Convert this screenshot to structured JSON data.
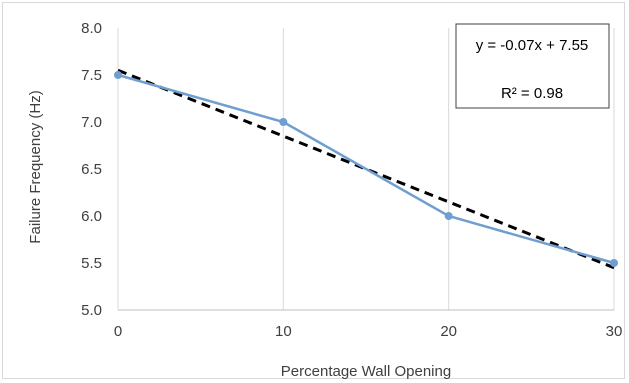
{
  "chart_data": {
    "type": "line",
    "xlabel": "Percentage Wall Opening",
    "ylabel": "Failure Frequency (Hz)",
    "xlim": [
      0,
      30
    ],
    "ylim": [
      5.0,
      8.0
    ],
    "x_ticks": [
      "0",
      "10",
      "20",
      "30"
    ],
    "y_ticks": [
      "5.0",
      "5.5",
      "6.0",
      "6.5",
      "7.0",
      "7.5",
      "8.0"
    ],
    "grid": "vertical",
    "series": [
      {
        "x": [
          0,
          10,
          20,
          30
        ],
        "values": [
          7.5,
          7.0,
          6.0,
          5.5
        ],
        "color": "#6f9fd0",
        "style": "solid-markers"
      }
    ],
    "trendline": {
      "slope": -0.07,
      "intercept": 7.55,
      "x": [
        0,
        30
      ],
      "color": "#000000",
      "style": "dashed"
    },
    "annotation": {
      "equation": "y = -0.07x + 7.55",
      "r_squared": "R² = 0.98",
      "placement": "top-right"
    }
  }
}
